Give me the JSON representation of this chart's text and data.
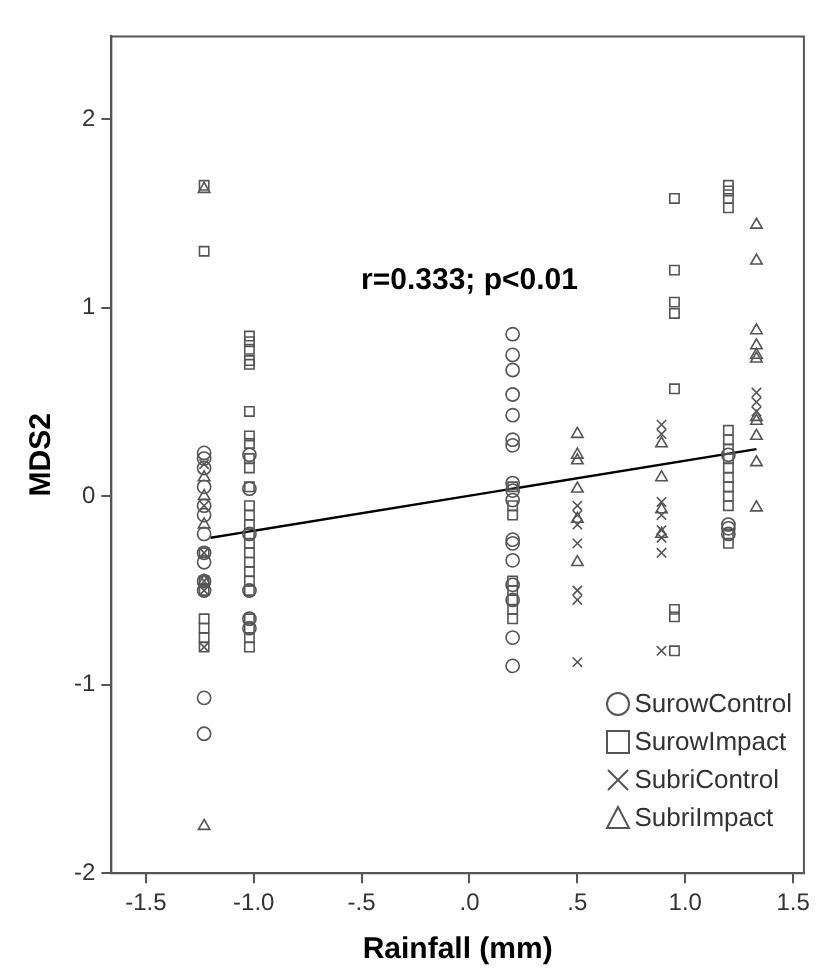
{
  "chart_data": {
    "type": "scatter",
    "xlabel": "Rainfall (mm)",
    "ylabel": "MDS2",
    "annotations": [
      "r=0.333; p<0.01"
    ],
    "xlim": [
      -1.66,
      1.55
    ],
    "ylim": [
      -2,
      2.44
    ],
    "xticks": [
      {
        "value": -1.5,
        "label": "-1.5"
      },
      {
        "value": -1,
        "label": "-1.0"
      },
      {
        "value": -0.5,
        "label": "-.5"
      },
      {
        "value": 0,
        "label": ".0"
      },
      {
        "value": 0.5,
        "label": ".5"
      },
      {
        "value": 1,
        "label": "1.0"
      },
      {
        "value": 1.5,
        "label": "1.5"
      }
    ],
    "yticks": [
      -2,
      -1,
      0,
      1,
      2
    ],
    "grid": false,
    "legend": "bottom right",
    "series": [
      {
        "name": "SurowControl",
        "color": "#555555",
        "marker": "circle",
        "x": [
          -1.23,
          -1.23,
          -1.23,
          -1.23,
          -1.23,
          -1.23,
          -1.23,
          -1.23,
          -1.23,
          -1.23,
          -1.23,
          -1.23,
          -1.23,
          -1.02,
          -1.02,
          -1.02,
          -1.02,
          -1.02,
          -1.02,
          0.2,
          0.2,
          0.2,
          0.2,
          0.2,
          0.2,
          0.2,
          0.2,
          0.2,
          0.2,
          0.2,
          0.2,
          0.2,
          0.2,
          0.2,
          0.2,
          0.2,
          1.2,
          1.2,
          1.2,
          1.2
        ],
        "values": [
          0.23,
          0.2,
          0.15,
          0.05,
          -0.05,
          -0.1,
          -0.2,
          -0.3,
          -0.35,
          -0.45,
          -0.5,
          -1.07,
          -1.26,
          0.22,
          0.04,
          -0.2,
          -0.5,
          -0.65,
          -0.7,
          0.86,
          0.75,
          0.67,
          0.54,
          0.43,
          0.3,
          0.27,
          0.07,
          0.03,
          -0.02,
          -0.23,
          -0.25,
          -0.34,
          -0.47,
          -0.55,
          -0.75,
          -0.9,
          0.22,
          -0.15,
          -0.17,
          -0.2
        ]
      },
      {
        "name": "SurowImpact",
        "color": "#555555",
        "marker": "square",
        "x": [
          -1.23,
          -1.23,
          -1.23,
          -1.23,
          -1.23,
          -1.23,
          -1.23,
          -1.23,
          -1.23,
          -1.02,
          -1.02,
          -1.02,
          -1.02,
          -1.02,
          -1.02,
          -1.02,
          -1.02,
          -1.02,
          -1.02,
          -1.02,
          -1.02,
          -1.02,
          -1.02,
          -1.02,
          -1.02,
          -1.02,
          -1.02,
          -1.02,
          -1.02,
          -1.02,
          -1.02,
          -1.02,
          -1.02,
          -1.02,
          0.2,
          0.2,
          0.2,
          0.2,
          0.2,
          0.2,
          0.2,
          0.2,
          0.95,
          0.95,
          0.95,
          0.95,
          0.95,
          0.95,
          0.95,
          0.95,
          1.2,
          1.2,
          1.2,
          1.2,
          1.2,
          1.2,
          1.2,
          1.2,
          1.2,
          1.2,
          1.2,
          1.2,
          1.2,
          1.2,
          1.2
        ],
        "values": [
          1.65,
          1.3,
          -0.3,
          -0.45,
          -0.5,
          -0.65,
          -0.7,
          -0.75,
          -0.8,
          0.85,
          0.82,
          0.78,
          0.72,
          0.7,
          0.45,
          0.32,
          0.28,
          0.2,
          0.15,
          0.05,
          -0.05,
          -0.1,
          -0.15,
          -0.2,
          -0.25,
          -0.3,
          -0.35,
          -0.4,
          -0.45,
          -0.5,
          -0.65,
          -0.7,
          -0.75,
          -0.8,
          0.05,
          -0.05,
          -0.1,
          -0.45,
          -0.5,
          -0.55,
          -0.6,
          -0.65,
          1.58,
          1.2,
          1.03,
          0.97,
          0.57,
          -0.6,
          -0.64,
          -0.82,
          1.65,
          1.62,
          1.58,
          1.53,
          0.35,
          0.3,
          0.25,
          0.2,
          0.15,
          0.1,
          0.05,
          0,
          -0.05,
          -0.2,
          -0.25
        ]
      },
      {
        "name": "SubriControl",
        "color": "#555555",
        "marker": "cross",
        "x": [
          -1.23,
          -1.23,
          -1.23,
          -1.23,
          -1.23,
          -1.23,
          0.5,
          0.5,
          0.5,
          0.5,
          0.5,
          0.5,
          0.5,
          0.89,
          0.89,
          0.89,
          0.89,
          0.89,
          0.89,
          0.89,
          0.89,
          1.33,
          1.33,
          1.33
        ],
        "values": [
          0.17,
          -0.05,
          -0.3,
          -0.45,
          -0.5,
          -0.8,
          -0.05,
          -0.1,
          -0.15,
          -0.25,
          -0.5,
          -0.55,
          -0.88,
          0.38,
          0.33,
          -0.03,
          -0.1,
          -0.18,
          -0.22,
          -0.3,
          -0.82,
          0.55,
          0.5,
          0.45
        ]
      },
      {
        "name": "SubriImpact",
        "color": "#555555",
        "marker": "triangle",
        "x": [
          -1.23,
          -1.23,
          -1.23,
          -1.23,
          -1.23,
          -1.23,
          0.5,
          0.5,
          0.5,
          0.5,
          0.5,
          0.5,
          0.89,
          0.89,
          0.89,
          0.89,
          1.33,
          1.33,
          1.33,
          1.33,
          1.33,
          1.33,
          1.33,
          1.33,
          1.33,
          1.33,
          1.33
        ],
        "values": [
          1.63,
          0.1,
          0,
          -0.15,
          -0.45,
          -1.75,
          0.33,
          0.22,
          0.19,
          0.04,
          -0.12,
          -0.35,
          0.28,
          0.1,
          -0.07,
          -0.2,
          1.44,
          1.25,
          0.88,
          0.8,
          0.75,
          0.73,
          0.42,
          0.4,
          0.32,
          0.18,
          -0.06
        ]
      },
      {
        "type": "line",
        "color": "#000000",
        "marker": "none",
        "x": [
          -1.2,
          1.33
        ],
        "values": [
          -0.22,
          0.25
        ]
      }
    ]
  }
}
